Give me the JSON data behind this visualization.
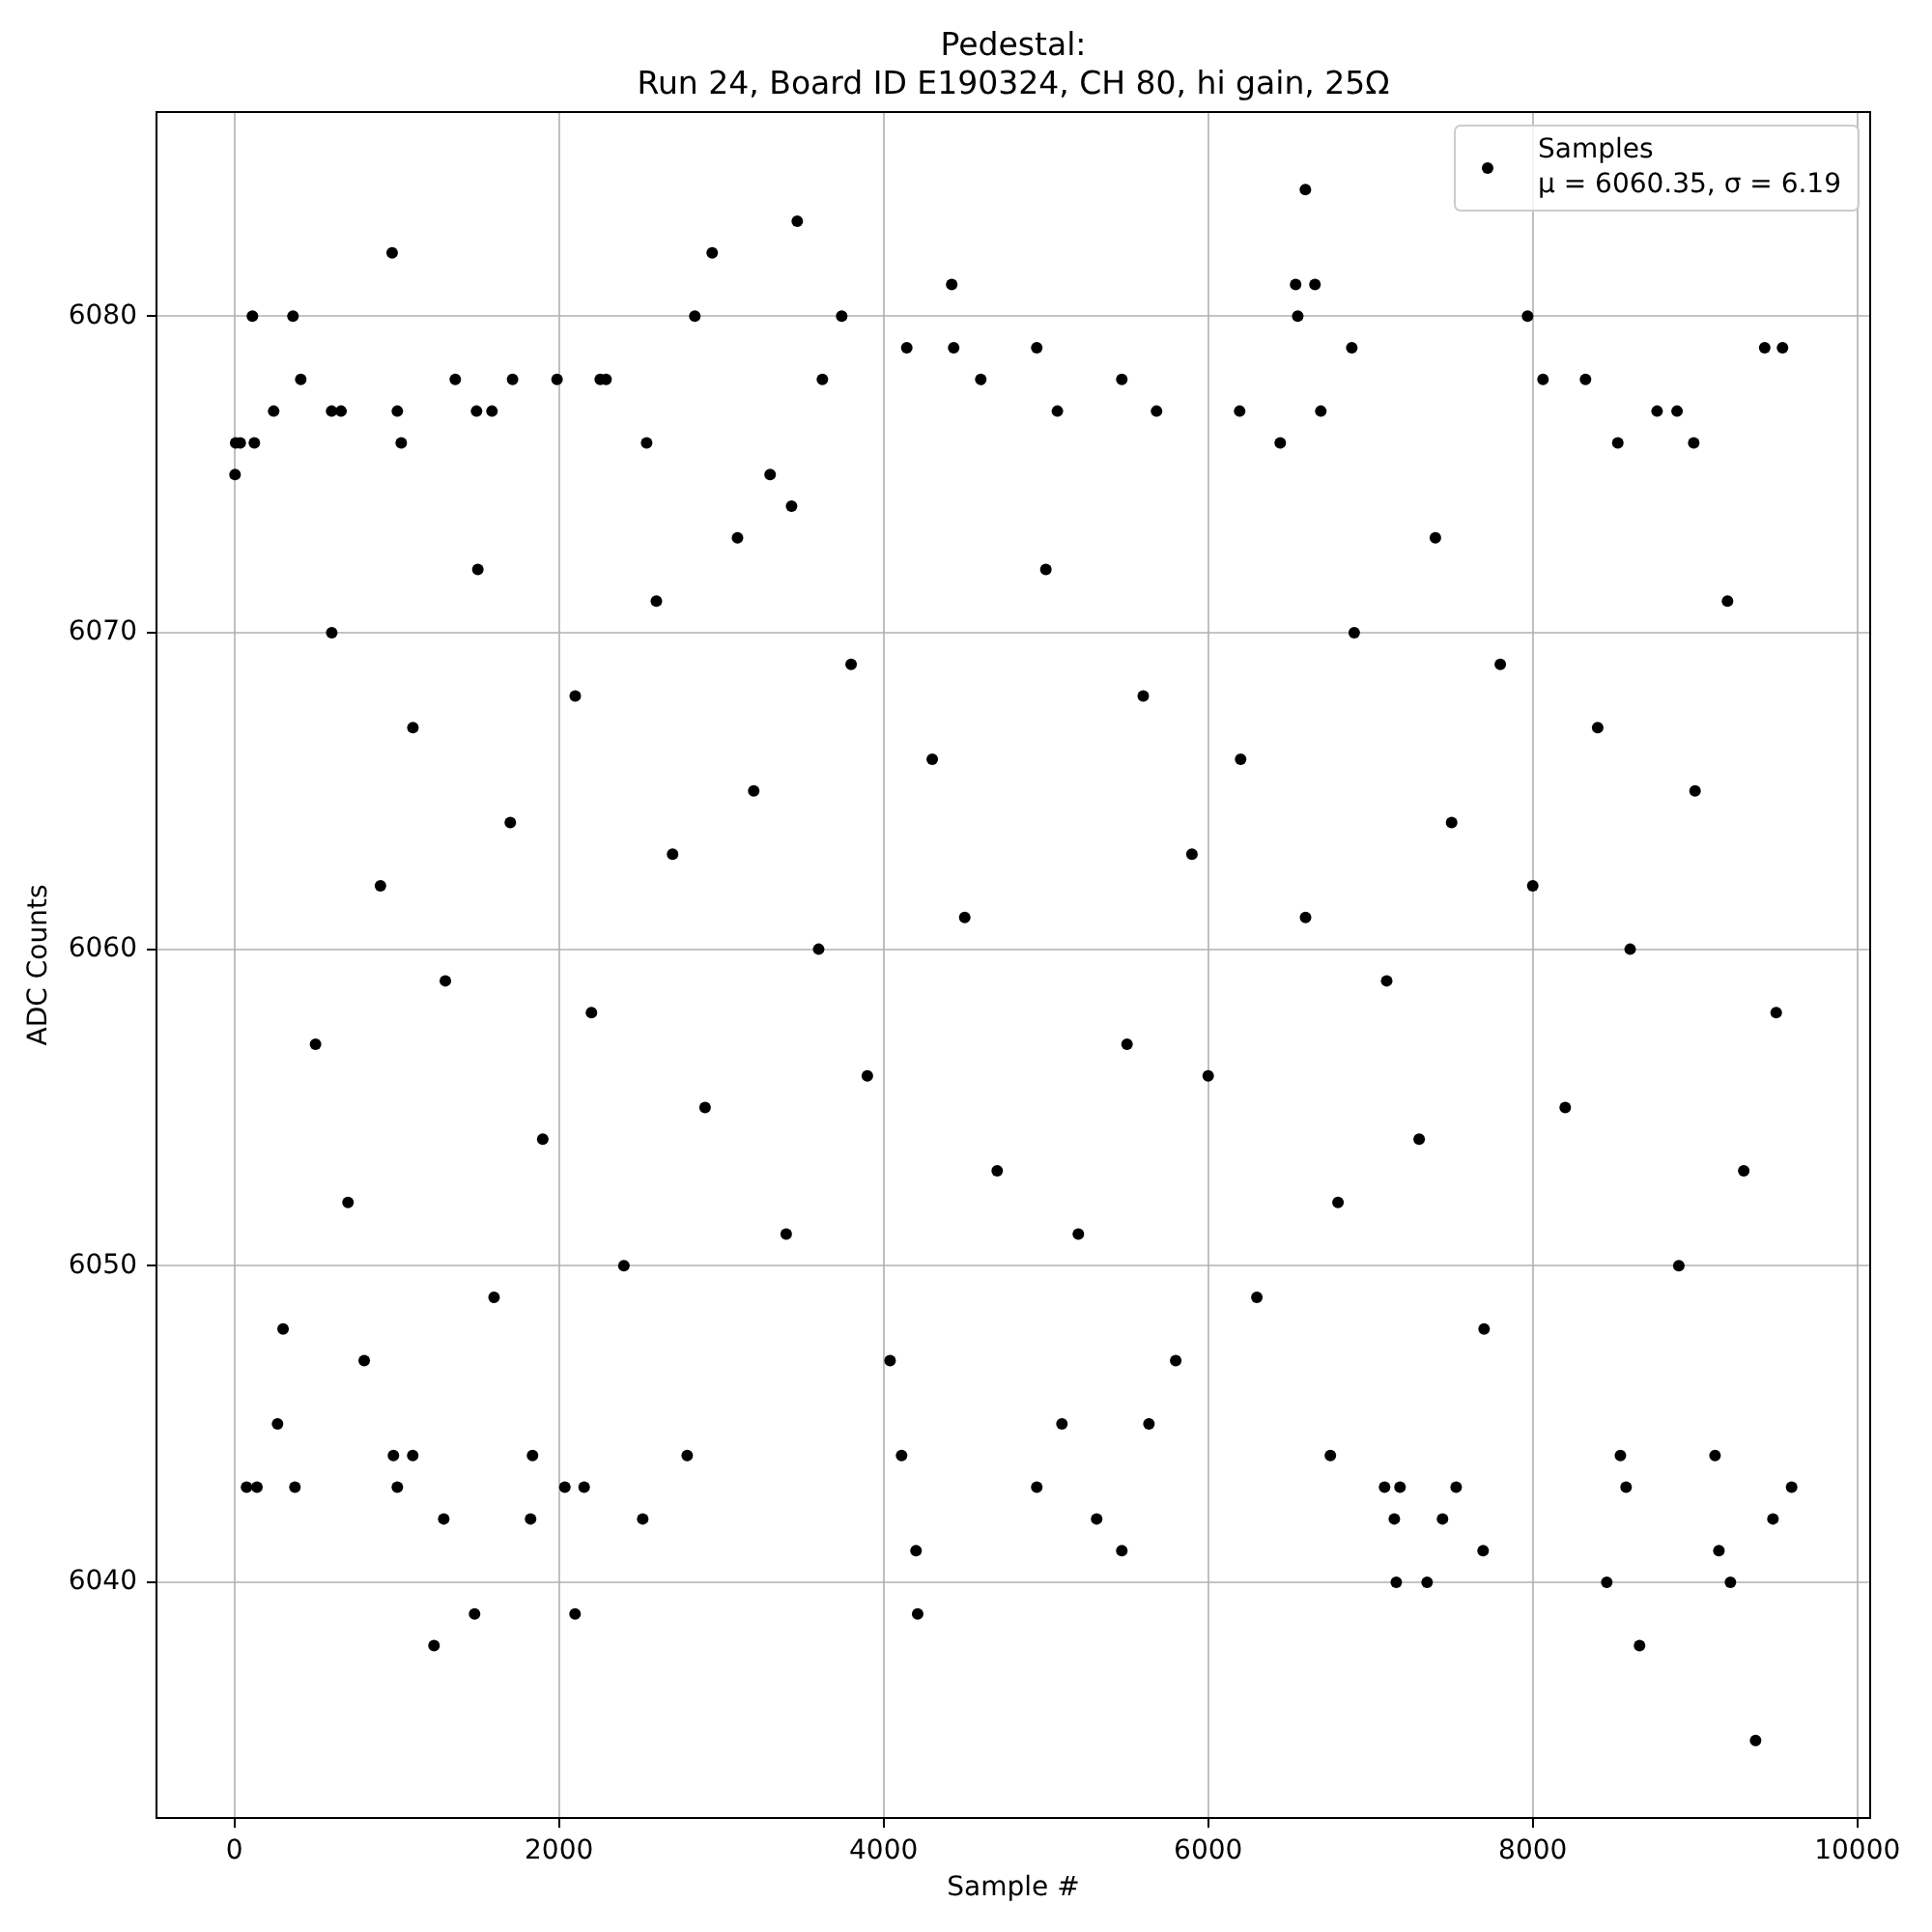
{
  "chart_data": {
    "type": "scatter",
    "title": "Pedestal:\nRun 24, Board ID E190324, CH 80, hi gain, 25Ω",
    "xlabel": "Sample #",
    "ylabel": "ADC Counts",
    "xlim": [
      -480,
      10079
    ],
    "ylim": [
      6032.55,
      6086.45
    ],
    "xticks": [
      0,
      2000,
      4000,
      6000,
      8000,
      10000
    ],
    "yticks": [
      6040,
      6050,
      6060,
      6070,
      6080
    ],
    "grid": true,
    "legend": "top right",
    "marker": "circle",
    "series": [
      {
        "name": "Samples\nμ = 6060.35, σ = 6.19",
        "color": "#000000",
        "x": [
          4,
          8,
          36,
          123,
          111,
          242,
          361,
          409,
          599,
          657,
          972,
          1004,
          1028,
          1361,
          1492,
          1587,
          1714,
          1988,
          2254,
          2290,
          2540,
          2837,
          2944,
          3301,
          3433,
          3468,
          3623,
          3742,
          4143,
          4420,
          4432,
          4599,
          4944,
          5071,
          5468,
          5682,
          6194,
          6444,
          6539,
          6552,
          6599,
          6658,
          6694,
          6885,
          7968,
          8063,
          8325,
          8524,
          8766,
          8889,
          8992,
          9429,
          9539,
          75,
          139,
          266,
          373,
          980,
          1004,
          1099,
          1230,
          1290,
          1480,
          1825,
          1837,
          2036,
          2099,
          2155,
          2516,
          2790,
          4040,
          4111,
          4200,
          4210,
          4944,
          5099,
          5313,
          5468,
          5635,
          6753,
          7087,
          7147,
          7159,
          7182,
          7349,
          7444,
          7528,
          7694,
          8456,
          8540,
          8575,
          8658,
          9123,
          9147,
          9218,
          9373,
          9480,
          9595,
          800,
          5800,
          300,
          7700,
          1600,
          6300,
          2400,
          8900,
          3400,
          5200,
          700,
          6800,
          4700,
          9300,
          1900,
          7300,
          2900,
          8200,
          3900,
          6000,
          500,
          5500,
          2200,
          9500,
          1300,
          7100,
          3600,
          8600,
          4500,
          6600,
          900,
          8000,
          2700,
          5900,
          1700,
          7500,
          3200,
          9000,
          4300,
          6200,
          1100,
          8400,
          2100,
          5600,
          3800,
          7800,
          600,
          6900,
          2600,
          9200,
          1500,
          5000,
          3100,
          7400
        ],
        "values": [
          6075,
          6076,
          6076,
          6076,
          6080,
          6077,
          6080,
          6078,
          6077,
          6077,
          6082,
          6077,
          6076,
          6078,
          6077,
          6077,
          6078,
          6078,
          6078,
          6078,
          6076,
          6080,
          6082,
          6075,
          6074,
          6083,
          6078,
          6080,
          6079,
          6081,
          6079,
          6078,
          6079,
          6077,
          6078,
          6077,
          6077,
          6076,
          6081,
          6080,
          6084,
          6081,
          6077,
          6079,
          6080,
          6078,
          6078,
          6076,
          6077,
          6077,
          6076,
          6079,
          6079,
          6043,
          6043,
          6045,
          6043,
          6044,
          6043,
          6044,
          6038,
          6042,
          6039,
          6042,
          6044,
          6043,
          6039,
          6043,
          6042,
          6044,
          6047,
          6044,
          6041,
          6039,
          6043,
          6045,
          6042,
          6041,
          6045,
          6044,
          6043,
          6042,
          6040,
          6043,
          6040,
          6042,
          6043,
          6041,
          6040,
          6044,
          6043,
          6038,
          6044,
          6041,
          6040,
          6035,
          6042,
          6043,
          6047,
          6047,
          6048,
          6048,
          6049,
          6049,
          6050,
          6050,
          6051,
          6051,
          6052,
          6052,
          6053,
          6053,
          6054,
          6054,
          6055,
          6055,
          6056,
          6056,
          6057,
          6057,
          6058,
          6058,
          6059,
          6059,
          6060,
          6060,
          6061,
          6061,
          6062,
          6062,
          6063,
          6063,
          6064,
          6064,
          6065,
          6065,
          6066,
          6066,
          6067,
          6067,
          6068,
          6068,
          6069,
          6069,
          6070,
          6070,
          6071,
          6071,
          6072,
          6072,
          6073,
          6073
        ]
      }
    ]
  }
}
